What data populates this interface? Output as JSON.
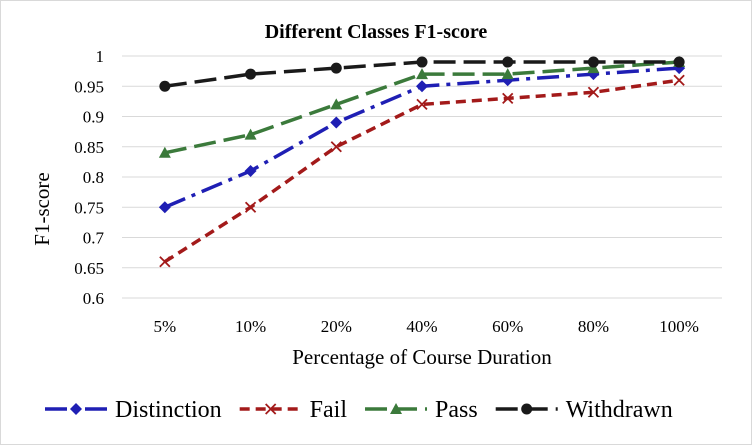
{
  "chart_data": {
    "type": "line",
    "title": "Different Classes F1-score",
    "xlabel": "Percentage of Course Duration",
    "ylabel": "F1-score",
    "categories": [
      "5%",
      "10%",
      "20%",
      "40%",
      "60%",
      "80%",
      "100%"
    ],
    "ylim": [
      0.6,
      1.0
    ],
    "yticks": [
      0.6,
      0.65,
      0.7,
      0.75,
      0.8,
      0.85,
      0.9,
      0.95,
      1.0
    ],
    "ytick_labels": [
      "0.6",
      "0.65",
      "0.7",
      "0.75",
      "0.8",
      "0.85",
      "0.9",
      "0.95",
      "1"
    ],
    "grid": "horizontal",
    "legend_position": "bottom",
    "series": [
      {
        "name": "Distinction",
        "values": [
          0.75,
          0.81,
          0.89,
          0.95,
          0.96,
          0.97,
          0.98
        ],
        "color": "#1f1fb4",
        "marker": "diamond",
        "dash": "long-dash-dot"
      },
      {
        "name": "Fail",
        "values": [
          0.66,
          0.75,
          0.85,
          0.92,
          0.93,
          0.94,
          0.96
        ],
        "color": "#a31a1a",
        "marker": "x",
        "dash": "dash"
      },
      {
        "name": "Pass",
        "values": [
          0.84,
          0.87,
          0.92,
          0.97,
          0.97,
          0.98,
          0.99
        ],
        "color": "#3b7a3b",
        "marker": "triangle",
        "dash": "long-dash"
      },
      {
        "name": "Withdrawn",
        "values": [
          0.95,
          0.97,
          0.98,
          0.99,
          0.99,
          0.99,
          0.99
        ],
        "color": "#1a1a1a",
        "marker": "circle",
        "dash": "long-dash"
      }
    ]
  }
}
